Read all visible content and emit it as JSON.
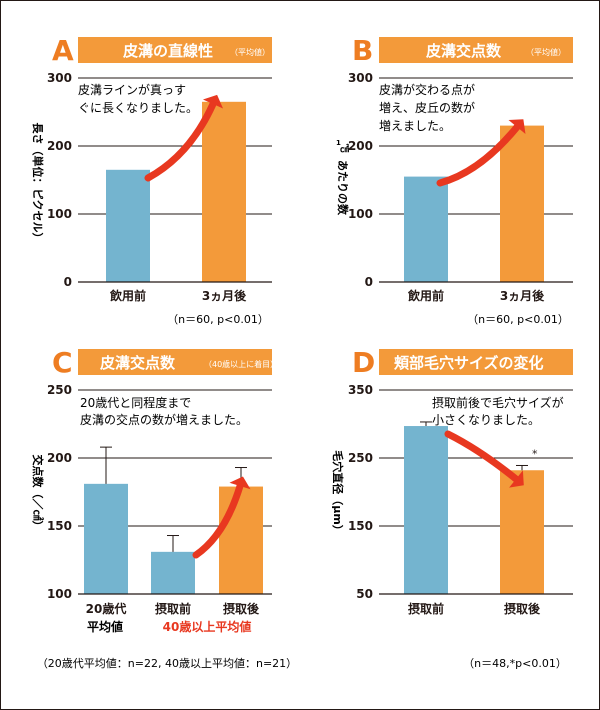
{
  "colors": {
    "accent": "#F39A3A",
    "letter": "#EE7D22",
    "bar_blue": "#74B4CF",
    "bar_orange": "#F39A3A",
    "arrow": "#E83820",
    "red_text": "#E83820",
    "text": "#231815",
    "header_text": "#ffffff"
  },
  "panels": [
    {
      "letter": "A",
      "title": "皮溝の直線性",
      "title_small": "（平均値）",
      "annotation": [
        "皮溝ラインが真っす",
        "ぐに長くなりました。"
      ],
      "ylabel": "長さ（単位：ピクセル）",
      "note": "（n＝60, p<0.01）"
    },
    {
      "letter": "B",
      "title": "皮溝交点数",
      "title_small": "（平均値）",
      "annotation": [
        "皮溝が交わる点が",
        "増え、皮丘の数が",
        "増えました。"
      ],
      "ylabel_super": "1",
      "ylabel_unit": "㎠",
      "ylabel": "あたりの数",
      "note": "（n＝60, p<0.01）"
    },
    {
      "letter": "C",
      "title": "皮溝交点数",
      "title_small": "（40歳以上に着目）",
      "annotation": [
        "20歳代と同程度まで",
        "皮溝の交点の数が増えました。"
      ],
      "ylabel": "交点数（／㎠）",
      "cat_line2": [
        "平均値",
        "40歳以上平均値"
      ],
      "note": "（20歳代平均値：n=22, 40歳以上平均値：n=21）"
    },
    {
      "letter": "D",
      "title": "頬部毛穴サイズの変化",
      "title_small": "",
      "annotation": [
        "摂取前後で毛穴サイズが",
        "小さくなりました。"
      ],
      "ylabel": "毛穴直径（μm）",
      "star": "*",
      "note": "（n＝48,*p<0.01）"
    }
  ],
  "chart_data": [
    {
      "type": "bar",
      "title": "皮溝の直線性",
      "ylabel": "長さ（単位：ピクセル）",
      "categories": [
        "飲用前",
        "3ヵ月後"
      ],
      "values": [
        165,
        265
      ],
      "yticks": [
        0,
        100,
        200,
        300
      ],
      "ylim": [
        0,
        300
      ]
    },
    {
      "type": "bar",
      "title": "皮溝交点数",
      "ylabel": "1㎠あたりの数",
      "categories": [
        "飲用前",
        "3ヵ月後"
      ],
      "values": [
        155,
        230
      ],
      "yticks": [
        0,
        100,
        200,
        300
      ],
      "ylim": [
        0,
        300
      ]
    },
    {
      "type": "bar",
      "title": "皮溝交点数",
      "ylabel": "交点数（／㎠）",
      "categories": [
        "20歳代",
        "摂取前",
        "摂取後"
      ],
      "values": [
        181,
        131,
        179
      ],
      "errors": [
        27,
        12,
        14
      ],
      "yticks": [
        100,
        150,
        200,
        250
      ],
      "ylim": [
        100,
        250
      ]
    },
    {
      "type": "bar",
      "title": "頬部毛穴サイズの変化",
      "ylabel": "毛穴直径（μm）",
      "categories": [
        "摂取前",
        "摂取後"
      ],
      "values": [
        297,
        232
      ],
      "errors": [
        6,
        7
      ],
      "yticks": [
        50,
        150,
        250,
        350
      ],
      "ylim": [
        50,
        350
      ]
    }
  ]
}
